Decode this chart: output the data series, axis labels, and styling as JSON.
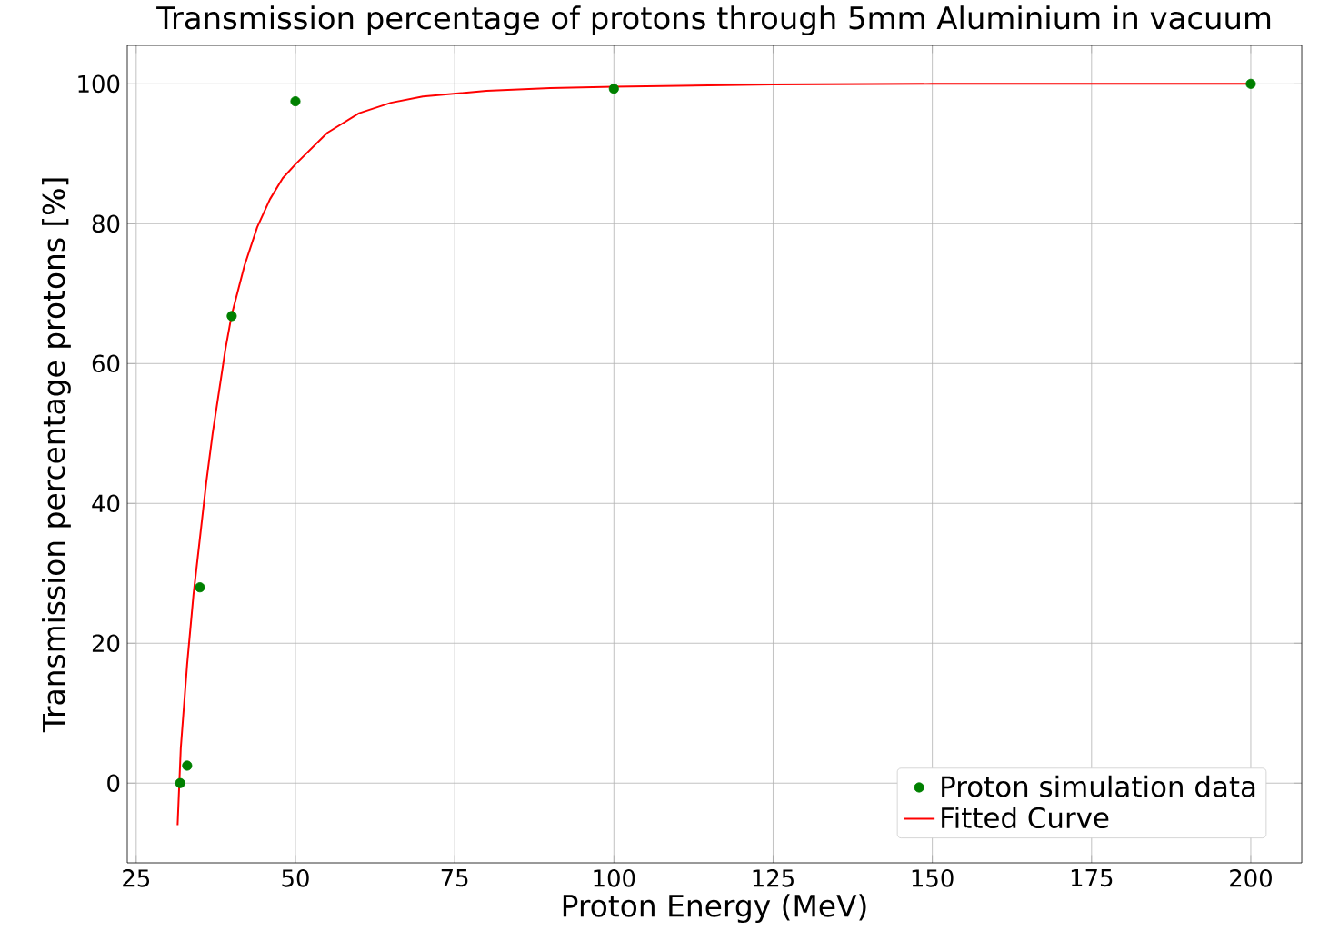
{
  "chart_data": {
    "type": "scatter",
    "title": "Transmission percentage of protons through 5mm Aluminium in vacuum",
    "xlabel": "Proton Energy (MeV)",
    "ylabel": "Transmission percentage protons [%]",
    "xlim": [
      23.6,
      208
    ],
    "ylim": [
      -11.4,
      105.5
    ],
    "xticks": [
      25,
      50,
      75,
      100,
      125,
      150,
      175,
      200
    ],
    "yticks": [
      0,
      20,
      40,
      60,
      80,
      100
    ],
    "grid": true,
    "legend": "bottom right",
    "series": [
      {
        "name": "Proton simulation data",
        "marker": "circle",
        "color": "#008000",
        "x": [
          31.9,
          33,
          35,
          40,
          50,
          100,
          200
        ],
        "values": [
          0,
          2.5,
          28,
          66.8,
          97.5,
          99.3,
          100
        ]
      },
      {
        "name": "Fitted Curve",
        "type": "line",
        "color": "#ff0000",
        "marker": "none",
        "line_style": "solid",
        "x": [
          31.5,
          32,
          33,
          34,
          35,
          36,
          37,
          38,
          39,
          40,
          42,
          44,
          46,
          48,
          50,
          55,
          60,
          65,
          70,
          80,
          90,
          100,
          125,
          150,
          200
        ],
        "values": [
          -6,
          5,
          17,
          27,
          35,
          43,
          50,
          56,
          62,
          67,
          74,
          79.5,
          83.5,
          86.5,
          88.5,
          93,
          95.8,
          97.3,
          98.2,
          99,
          99.4,
          99.6,
          99.9,
          100,
          100
        ]
      }
    ]
  }
}
